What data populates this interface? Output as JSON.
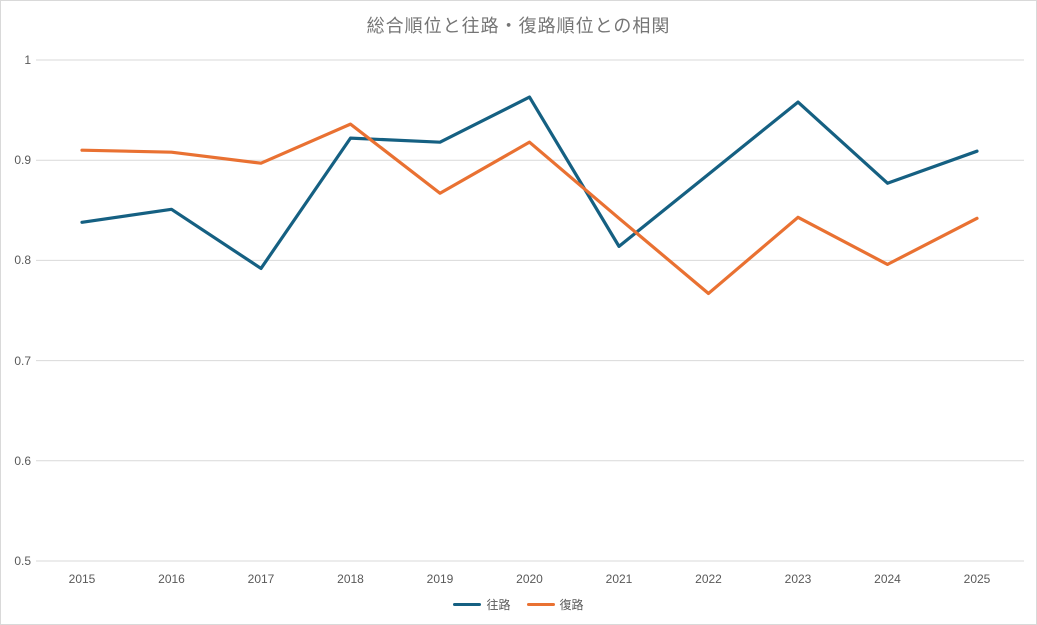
{
  "chart": {
    "colors": {
      "frame_border": "#D9D9D9",
      "gridline": "#D9D9D9",
      "title_text": "#757575",
      "axis_text": "#595959",
      "series1": "#156082",
      "series2": "#E97132"
    }
  },
  "chart_data": {
    "type": "line",
    "title": "総合順位と往路・復路順位との相関",
    "categories": [
      "2015",
      "2016",
      "2017",
      "2018",
      "2019",
      "2020",
      "2021",
      "2022",
      "2023",
      "2024",
      "2025"
    ],
    "series": [
      {
        "name": "往路",
        "color": "#156082",
        "values": [
          0.838,
          0.851,
          0.792,
          0.922,
          0.918,
          0.963,
          0.814,
          0.886,
          0.958,
          0.877,
          0.909
        ]
      },
      {
        "name": "復路",
        "color": "#E97132",
        "values": [
          0.91,
          0.908,
          0.897,
          0.936,
          0.867,
          0.918,
          0.842,
          0.767,
          0.843,
          0.796,
          0.842
        ]
      }
    ],
    "ylim": [
      0.5,
      1.0
    ],
    "yticks": [
      1.0,
      0.9,
      0.8,
      0.7,
      0.6,
      0.5
    ],
    "ytick_labels": [
      "1",
      "0.9",
      "0.8",
      "0.7",
      "0.6",
      "0.5"
    ],
    "grid": true,
    "legend_position": "bottom"
  }
}
